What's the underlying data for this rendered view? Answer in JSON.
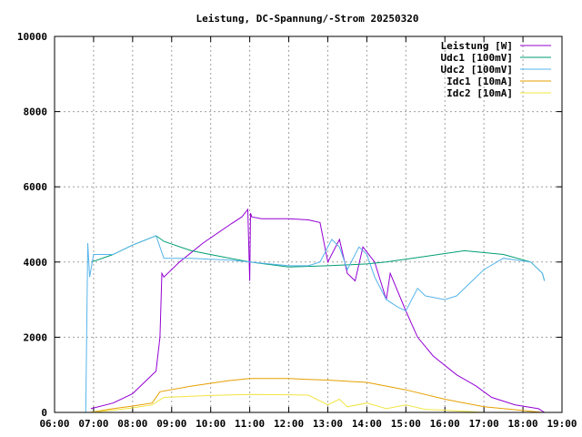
{
  "chart_data": {
    "type": "line",
    "title": "Leistung, DC-Spannung/-Strom 20250320",
    "xlabel": "",
    "ylabel": "",
    "xlim": [
      6,
      19
    ],
    "ylim": [
      0,
      10000
    ],
    "grid": true,
    "legend_position": "top-right",
    "x_ticks": [
      {
        "v": 6,
        "label": "06:00"
      },
      {
        "v": 7,
        "label": "07:00"
      },
      {
        "v": 8,
        "label": "08:00"
      },
      {
        "v": 9,
        "label": "09:00"
      },
      {
        "v": 10,
        "label": "10:00"
      },
      {
        "v": 11,
        "label": "11:00"
      },
      {
        "v": 12,
        "label": "12:00"
      },
      {
        "v": 13,
        "label": "13:00"
      },
      {
        "v": 14,
        "label": "14:00"
      },
      {
        "v": 15,
        "label": "15:00"
      },
      {
        "v": 16,
        "label": "16:00"
      },
      {
        "v": 17,
        "label": "17:00"
      },
      {
        "v": 18,
        "label": "18:00"
      },
      {
        "v": 19,
        "label": "19:00"
      }
    ],
    "y_ticks": [
      {
        "v": 0,
        "label": "0"
      },
      {
        "v": 2000,
        "label": "2000"
      },
      {
        "v": 4000,
        "label": "4000"
      },
      {
        "v": 6000,
        "label": "6000"
      },
      {
        "v": 8000,
        "label": "8000"
      },
      {
        "v": 10000,
        "label": "10000"
      }
    ],
    "series": [
      {
        "name": "Leistung [W]",
        "color": "#9400d3",
        "x": [
          6.93,
          7.5,
          8.0,
          8.3,
          8.6,
          8.7,
          8.75,
          8.8,
          9.2,
          9.8,
          10.5,
          10.8,
          10.95,
          11.0,
          11.02,
          11.05,
          11.3,
          12.0,
          12.5,
          12.8,
          13.0,
          13.3,
          13.5,
          13.7,
          13.9,
          14.2,
          14.5,
          14.6,
          15.0,
          15.3,
          15.7,
          16.3,
          16.8,
          17.2,
          17.8,
          18.4,
          18.55
        ],
        "y": [
          100,
          250,
          500,
          800,
          1100,
          2000,
          3700,
          3600,
          4000,
          4500,
          5000,
          5200,
          5400,
          3500,
          5300,
          5200,
          5150,
          5150,
          5120,
          5050,
          4000,
          4600,
          3700,
          3500,
          4400,
          4000,
          3000,
          3700,
          2700,
          2000,
          1500,
          1000,
          700,
          400,
          200,
          100,
          0
        ]
      },
      {
        "name": "Udc1 [100mV]",
        "color": "#009e73",
        "x": [
          6.95,
          7.5,
          8.0,
          8.6,
          8.8,
          9.5,
          10.5,
          11.0,
          12.0,
          13.0,
          14.0,
          14.5,
          15.5,
          16.5,
          17.5,
          18.2,
          18.5,
          18.55
        ],
        "y": [
          4000,
          4200,
          4450,
          4700,
          4550,
          4300,
          4100,
          4000,
          3870,
          3900,
          3950,
          4000,
          4150,
          4300,
          4200,
          4000,
          3700,
          3500
        ]
      },
      {
        "name": "Udc2 [100mV]",
        "color": "#56b4e9",
        "x": [
          6.8,
          6.85,
          6.9,
          7.0,
          7.5,
          8.0,
          8.6,
          8.8,
          9.5,
          10.5,
          11.0,
          12.0,
          12.5,
          12.8,
          13.1,
          13.3,
          13.5,
          13.8,
          14.0,
          14.2,
          14.5,
          14.8,
          15.0,
          15.3,
          15.5,
          16.0,
          16.3,
          16.6,
          17.0,
          17.5,
          18.2,
          18.5,
          18.55
        ],
        "y": [
          0,
          4500,
          3600,
          4200,
          4200,
          4450,
          4700,
          4100,
          4100,
          4050,
          4000,
          3900,
          3900,
          4000,
          4600,
          4400,
          3800,
          4400,
          4200,
          3600,
          3000,
          2800,
          2700,
          3300,
          3100,
          3000,
          3100,
          3400,
          3800,
          4100,
          4000,
          3700,
          3500
        ]
      },
      {
        "name": "Idc1 [10mA]",
        "color": "#e69f00",
        "x": [
          6.9,
          7.5,
          8.0,
          8.5,
          8.7,
          9.5,
          10.5,
          11.0,
          12.0,
          12.5,
          13.0,
          14.0,
          15.0,
          16.0,
          17.0,
          18.0,
          18.5
        ],
        "y": [
          0,
          100,
          170,
          250,
          550,
          700,
          850,
          900,
          900,
          880,
          860,
          800,
          600,
          350,
          150,
          50,
          0
        ]
      },
      {
        "name": "Idc2 [10mA]",
        "color": "#f0e442",
        "x": [
          6.9,
          7.5,
          8.0,
          8.5,
          8.8,
          10.0,
          11.0,
          12.0,
          12.5,
          13.0,
          13.3,
          13.5,
          14.0,
          14.5,
          15.0,
          15.5,
          16.0,
          16.5,
          17.0,
          18.0
        ],
        "y": [
          0,
          60,
          120,
          200,
          400,
          450,
          480,
          470,
          460,
          200,
          350,
          150,
          250,
          100,
          200,
          80,
          60,
          30,
          0,
          0
        ]
      }
    ]
  }
}
